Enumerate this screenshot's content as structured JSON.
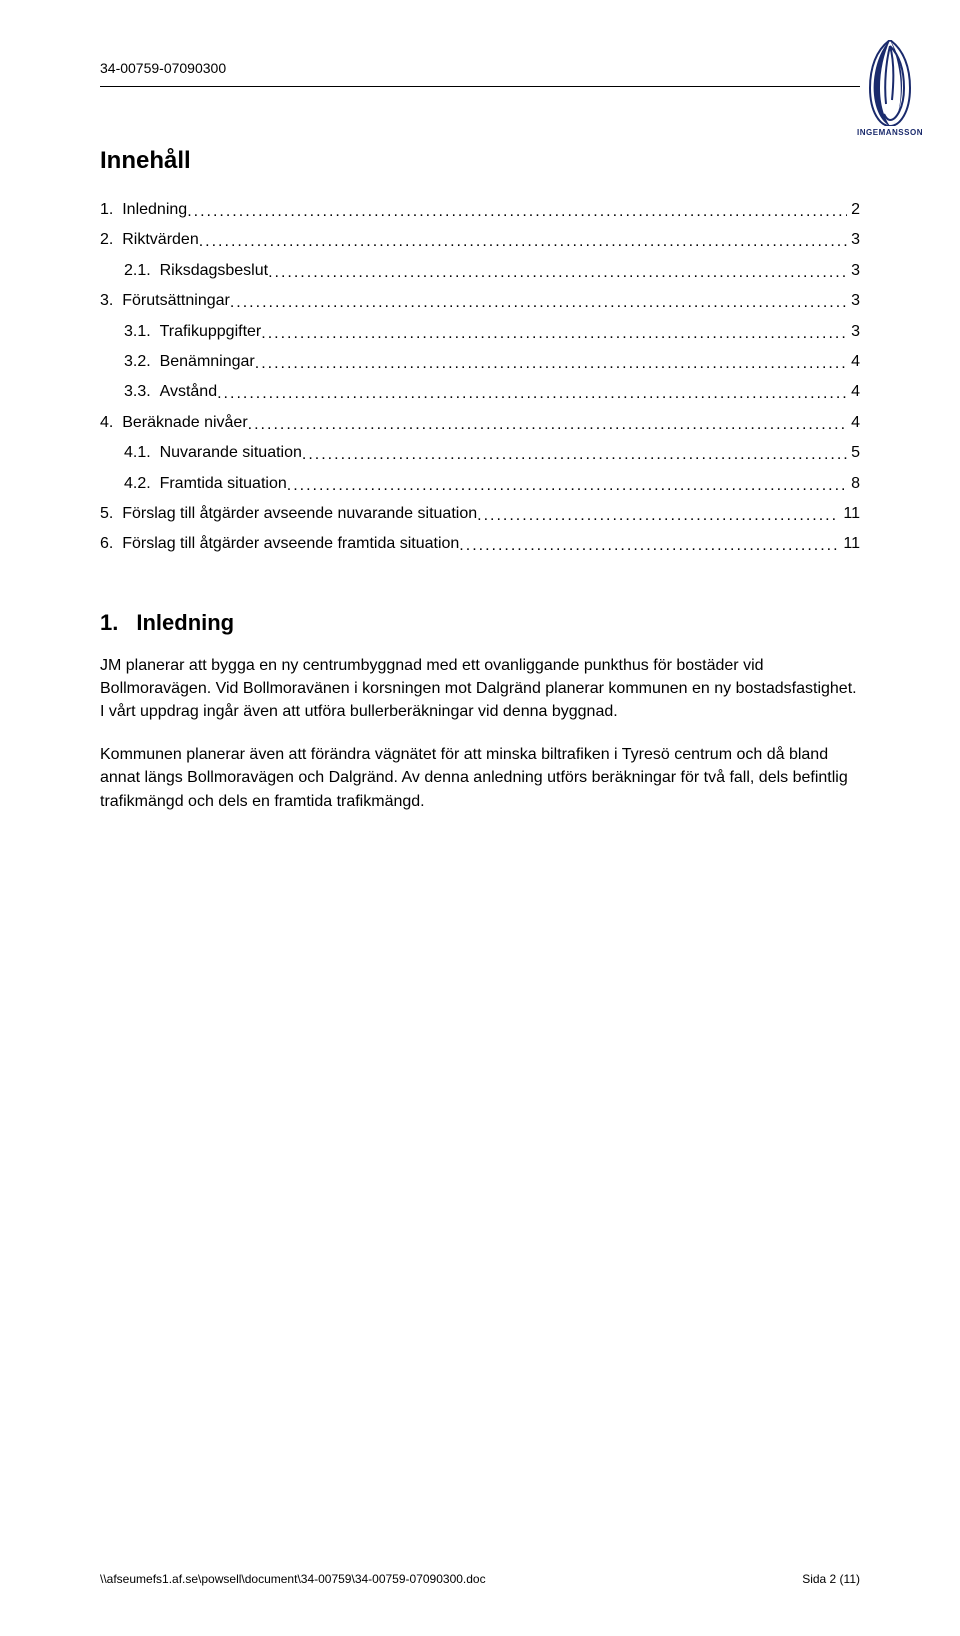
{
  "header": {
    "doc_id": "34-00759-07090300"
  },
  "logo": {
    "text": "INGEMANSSON",
    "fill": "#1a2a6c"
  },
  "toc": {
    "title": "Innehåll",
    "items": [
      {
        "level": 1,
        "num": "1.",
        "label": "Inledning",
        "page": "2"
      },
      {
        "level": 1,
        "num": "2.",
        "label": "Riktvärden",
        "page": "3"
      },
      {
        "level": 2,
        "num": "2.1.",
        "label": "Riksdagsbeslut",
        "page": "3"
      },
      {
        "level": 1,
        "num": "3.",
        "label": "Förutsättningar",
        "page": "3"
      },
      {
        "level": 2,
        "num": "3.1.",
        "label": "Trafikuppgifter",
        "page": "3"
      },
      {
        "level": 2,
        "num": "3.2.",
        "label": "Benämningar",
        "page": "4"
      },
      {
        "level": 2,
        "num": "3.3.",
        "label": "Avstånd",
        "page": "4"
      },
      {
        "level": 1,
        "num": "4.",
        "label": "Beräknade nivåer",
        "page": "4"
      },
      {
        "level": 2,
        "num": "4.1.",
        "label": "Nuvarande situation",
        "page": "5"
      },
      {
        "level": 2,
        "num": "4.2.",
        "label": "Framtida situation",
        "page": "8"
      },
      {
        "level": 1,
        "num": "5.",
        "label": "Förslag till åtgärder avseende nuvarande situation",
        "page": "11"
      },
      {
        "level": 1,
        "num": "6.",
        "label": "Förslag till åtgärder avseende framtida situation",
        "page": "11"
      }
    ]
  },
  "section1": {
    "num": "1.",
    "title": "Inledning",
    "p1": "JM planerar att bygga en ny centrumbyggnad med ett ovanliggande punkthus för bostäder vid Bollmoravägen. Vid Bollmoravänen i korsningen mot Dalgränd planerar kommunen en ny bostadsfastighet. I vårt uppdrag ingår även att utföra bullerberäkningar vid denna byggnad.",
    "p2": "Kommunen planerar även att förändra vägnätet för att minska biltrafiken i Tyresö centrum och då bland annat längs Bollmoravägen och Dalgränd. Av denna anledning utförs beräkningar för två fall, dels befintlig trafikmängd och dels en framtida trafikmängd."
  },
  "footer": {
    "path": "\\\\afseumefs1.af.se\\powsell\\document\\34-00759\\34-00759-07090300.doc",
    "page": "Sida 2 (11)"
  }
}
